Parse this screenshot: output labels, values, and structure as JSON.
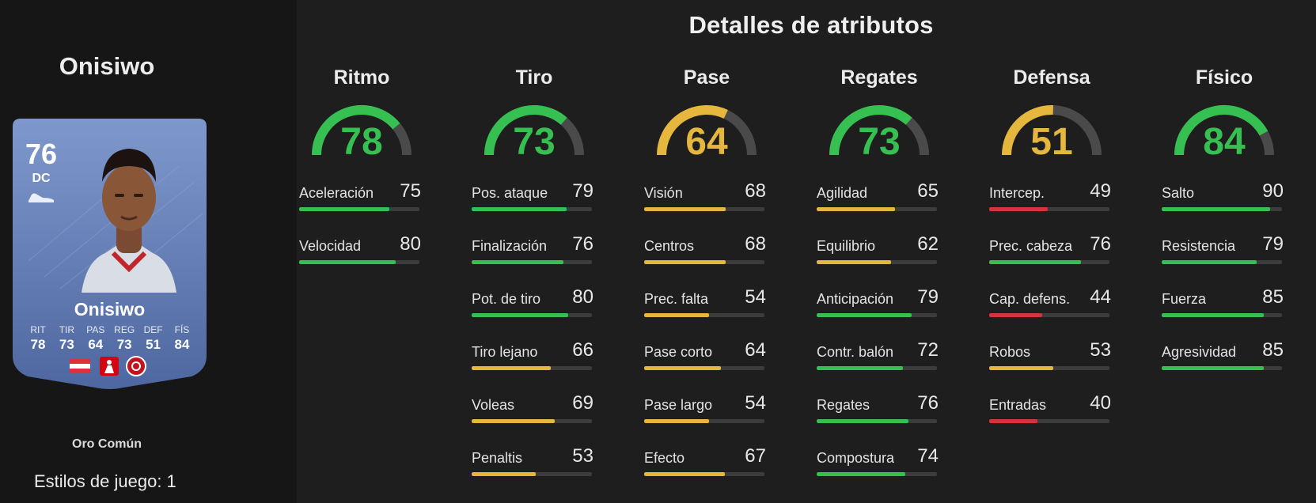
{
  "player": {
    "name": "Onisiwo",
    "card": {
      "rating": "76",
      "position": "DC",
      "name": "Onisiwo",
      "stats": [
        {
          "label": "RIT",
          "value": "78"
        },
        {
          "label": "TIR",
          "value": "73"
        },
        {
          "label": "PAS",
          "value": "64"
        },
        {
          "label": "REG",
          "value": "73"
        },
        {
          "label": "DEF",
          "value": "51"
        },
        {
          "label": "FÍS",
          "value": "84"
        }
      ],
      "badges": [
        "austria-flag-icon",
        "bundesliga-logo-icon",
        "mainz-club-crest-icon"
      ]
    },
    "quality": "Oro Común",
    "playstyles": "Estilos de juego: 1"
  },
  "details": {
    "title": "Detalles de atributos",
    "colors": {
      "green": "#37c052",
      "yellow": "#e5b83d",
      "red": "#d8323b",
      "track": "#4a4a4a"
    },
    "categories": [
      {
        "name": "Ritmo",
        "value": 78,
        "color": "green",
        "attributes": [
          {
            "name": "Aceleración",
            "value": 75,
            "color": "green"
          },
          {
            "name": "Velocidad",
            "value": 80,
            "color": "green"
          }
        ]
      },
      {
        "name": "Tiro",
        "value": 73,
        "color": "green",
        "attributes": [
          {
            "name": "Pos. ataque",
            "value": 79,
            "color": "green"
          },
          {
            "name": "Finalización",
            "value": 76,
            "color": "green"
          },
          {
            "name": "Pot. de tiro",
            "value": 80,
            "color": "green"
          },
          {
            "name": "Tiro lejano",
            "value": 66,
            "color": "yellow"
          },
          {
            "name": "Voleas",
            "value": 69,
            "color": "yellow"
          },
          {
            "name": "Penaltis",
            "value": 53,
            "color": "yellow"
          }
        ]
      },
      {
        "name": "Pase",
        "value": 64,
        "color": "yellow",
        "attributes": [
          {
            "name": "Visión",
            "value": 68,
            "color": "yellow"
          },
          {
            "name": "Centros",
            "value": 68,
            "color": "yellow"
          },
          {
            "name": "Prec. falta",
            "value": 54,
            "color": "yellow"
          },
          {
            "name": "Pase corto",
            "value": 64,
            "color": "yellow"
          },
          {
            "name": "Pase largo",
            "value": 54,
            "color": "yellow"
          },
          {
            "name": "Efecto",
            "value": 67,
            "color": "yellow"
          }
        ]
      },
      {
        "name": "Regates",
        "value": 73,
        "color": "green",
        "attributes": [
          {
            "name": "Agilidad",
            "value": 65,
            "color": "yellow"
          },
          {
            "name": "Equilibrio",
            "value": 62,
            "color": "yellow"
          },
          {
            "name": "Anticipación",
            "value": 79,
            "color": "green"
          },
          {
            "name": "Contr. balón",
            "value": 72,
            "color": "green"
          },
          {
            "name": "Regates",
            "value": 76,
            "color": "green"
          },
          {
            "name": "Compostura",
            "value": 74,
            "color": "green"
          }
        ]
      },
      {
        "name": "Defensa",
        "value": 51,
        "color": "yellow",
        "attributes": [
          {
            "name": "Intercep.",
            "value": 49,
            "color": "red"
          },
          {
            "name": "Prec. cabeza",
            "value": 76,
            "color": "green"
          },
          {
            "name": "Cap. defens.",
            "value": 44,
            "color": "red"
          },
          {
            "name": "Robos",
            "value": 53,
            "color": "yellow"
          },
          {
            "name": "Entradas",
            "value": 40,
            "color": "red"
          }
        ]
      },
      {
        "name": "Físico",
        "value": 84,
        "color": "green",
        "attributes": [
          {
            "name": "Salto",
            "value": 90,
            "color": "green"
          },
          {
            "name": "Resistencia",
            "value": 79,
            "color": "green"
          },
          {
            "name": "Fuerza",
            "value": 85,
            "color": "green"
          },
          {
            "name": "Agresividad",
            "value": 85,
            "color": "green"
          }
        ]
      }
    ]
  }
}
